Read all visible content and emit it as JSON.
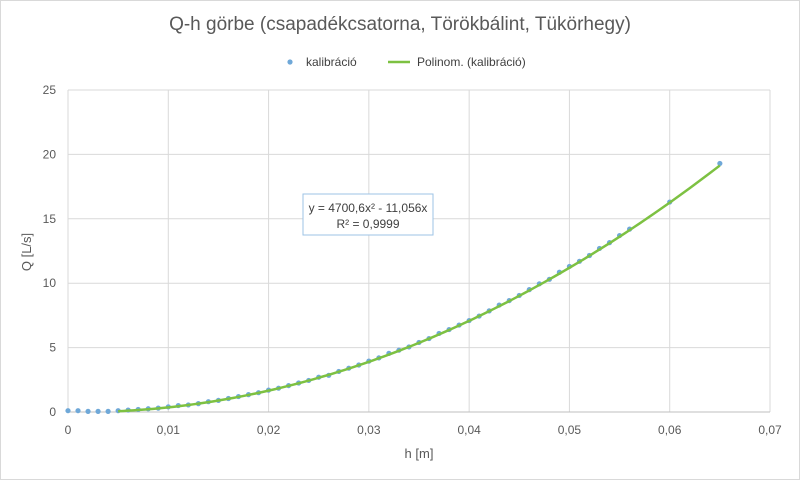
{
  "chart_data": {
    "type": "scatter",
    "title": "Q-h görbe (csapadékcsatorna, Törökbálint, Tükörhegy)",
    "xlabel": "h [m]",
    "ylabel": "Q [L/s]",
    "xlim": [
      0,
      0.07
    ],
    "ylim": [
      0,
      25
    ],
    "x_ticks": [
      "0",
      "0,01",
      "0,02",
      "0,03",
      "0,04",
      "0,05",
      "0,06",
      "0,07"
    ],
    "y_ticks": [
      "0",
      "5",
      "10",
      "15",
      "20",
      "25"
    ],
    "grid": true,
    "legend_position": "top",
    "series": [
      {
        "name": "kalibráció",
        "kind": "points",
        "color": "#6fa8d8",
        "x": [
          0,
          0.001,
          0.002,
          0.003,
          0.004,
          0.005,
          0.006,
          0.007,
          0.008,
          0.009,
          0.01,
          0.011,
          0.012,
          0.013,
          0.014,
          0.015,
          0.016,
          0.017,
          0.018,
          0.019,
          0.02,
          0.021,
          0.022,
          0.023,
          0.024,
          0.025,
          0.026,
          0.027,
          0.028,
          0.029,
          0.03,
          0.031,
          0.032,
          0.033,
          0.034,
          0.035,
          0.036,
          0.037,
          0.038,
          0.039,
          0.04,
          0.041,
          0.042,
          0.043,
          0.044,
          0.045,
          0.046,
          0.047,
          0.048,
          0.049,
          0.05,
          0.051,
          0.052,
          0.053,
          0.054,
          0.055,
          0.056,
          0.06,
          0.065
        ],
        "y": [
          0.1,
          0.1,
          0.05,
          0.05,
          0.05,
          0.1,
          0.15,
          0.2,
          0.25,
          0.3,
          0.4,
          0.5,
          0.55,
          0.65,
          0.8,
          0.9,
          1.05,
          1.2,
          1.35,
          1.5,
          1.7,
          1.85,
          2.05,
          2.25,
          2.45,
          2.7,
          2.85,
          3.15,
          3.4,
          3.65,
          3.95,
          4.2,
          4.55,
          4.8,
          5.05,
          5.4,
          5.7,
          6.1,
          6.4,
          6.75,
          7.1,
          7.45,
          7.85,
          8.3,
          8.65,
          9.05,
          9.5,
          9.95,
          10.3,
          10.85,
          11.3,
          11.7,
          12.15,
          12.7,
          13.15,
          13.7,
          14.2,
          16.3,
          19.3
        ]
      },
      {
        "name": "Polinom. (kalibráció)",
        "kind": "trendline",
        "color": "#7dc142",
        "x_range": [
          0.005,
          0.065
        ],
        "coefficients": {
          "a2": 4700.6,
          "a1": -11.056
        }
      }
    ],
    "annotation": {
      "equation": "y = 4700,6x² - 11,056x",
      "r_squared": "R² = 0,9999"
    }
  }
}
